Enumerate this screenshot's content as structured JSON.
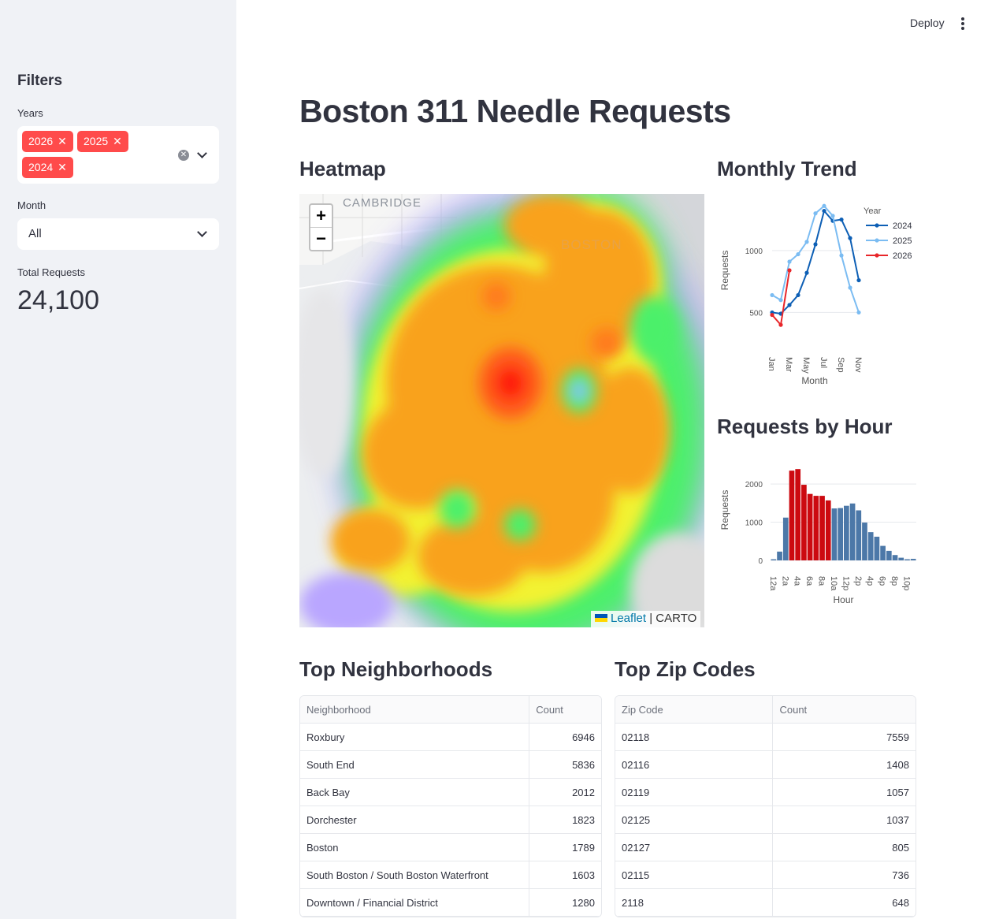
{
  "header": {
    "deploy_label": "Deploy",
    "menu_icon": "kebab-icon"
  },
  "sidebar": {
    "heading": "Filters",
    "years": {
      "label": "Years",
      "selected": [
        "2026",
        "2025",
        "2024"
      ]
    },
    "month": {
      "label": "Month",
      "value": "All"
    },
    "metric": {
      "label": "Total Requests",
      "value": "24,100"
    }
  },
  "page": {
    "title": "Boston 311 Needle Requests"
  },
  "heatmap": {
    "title": "Heatmap",
    "place_labels": [
      "CAMBRIDGE",
      "BOSTON"
    ],
    "zoom_in": "+",
    "zoom_out": "−",
    "attribution": {
      "leaflet": "Leaflet",
      "separator": "|",
      "tiles": "CARTO"
    }
  },
  "monthly_trend": {
    "title": "Monthly Trend",
    "chart_data": {
      "type": "line",
      "xlabel": "Month",
      "ylabel": "Requests",
      "x_ticks": [
        "Jan",
        "Mar",
        "May",
        "Jul",
        "Sep",
        "Nov"
      ],
      "y_ticks": [
        500,
        1000
      ],
      "ylim": [
        350,
        1400
      ],
      "legend_title": "Year",
      "legend_position": "top-right",
      "series": [
        {
          "name": "2024",
          "color": "#0d5fb5",
          "values": [
            500,
            490,
            560,
            640,
            820,
            1050,
            1320,
            1240,
            1250,
            1100,
            760
          ]
        },
        {
          "name": "2025",
          "color": "#7bbcf2",
          "values": [
            640,
            600,
            910,
            970,
            1070,
            1300,
            1360,
            1280,
            960,
            700,
            500
          ]
        },
        {
          "name": "2026",
          "color": "#e8262a",
          "values": [
            480,
            400,
            840
          ]
        }
      ]
    }
  },
  "requests_by_hour": {
    "title": "Requests by Hour",
    "chart_data": {
      "type": "bar",
      "xlabel": "Hour",
      "ylabel": "Requests",
      "categories": [
        "12a",
        "1a",
        "2a",
        "3a",
        "4a",
        "5a",
        "6a",
        "7a",
        "8a",
        "9a",
        "10a",
        "11a",
        "12p",
        "1p",
        "2p",
        "3p",
        "4p",
        "5p",
        "6p",
        "7p",
        "8p",
        "9p",
        "10p",
        "11p"
      ],
      "x_tick_labels": [
        "12a",
        "2a",
        "4a",
        "6a",
        "8a",
        "10a",
        "12p",
        "2p",
        "4p",
        "6p",
        "8p",
        "10p"
      ],
      "values": [
        30,
        230,
        1120,
        2350,
        2390,
        1980,
        1740,
        1690,
        1690,
        1570,
        1360,
        1370,
        1430,
        1490,
        1310,
        990,
        740,
        620,
        380,
        250,
        140,
        70,
        30,
        40
      ],
      "highlighted": [
        3,
        4,
        5,
        6,
        7,
        8,
        9
      ],
      "y_ticks": [
        0,
        1000,
        2000
      ],
      "ylim": [
        0,
        2600
      ],
      "colors": {
        "normal": "#4c78a8",
        "highlight": "#cc0a10"
      }
    }
  },
  "top_neighborhoods": {
    "title": "Top Neighborhoods",
    "columns": [
      "Neighborhood",
      "Count"
    ],
    "rows": [
      [
        "Roxbury",
        "6946"
      ],
      [
        "South End",
        "5836"
      ],
      [
        "Back Bay",
        "2012"
      ],
      [
        "Dorchester",
        "1823"
      ],
      [
        "Boston",
        "1789"
      ],
      [
        "South Boston / South Boston Waterfront",
        "1603"
      ],
      [
        "Downtown / Financial District",
        "1280"
      ]
    ]
  },
  "top_zip_codes": {
    "title": "Top Zip Codes",
    "columns": [
      "Zip Code",
      "Count"
    ],
    "rows": [
      [
        "02118",
        "7559"
      ],
      [
        "02116",
        "1408"
      ],
      [
        "02119",
        "1057"
      ],
      [
        "02125",
        "1037"
      ],
      [
        "02127",
        "805"
      ],
      [
        "02115",
        "736"
      ],
      [
        "2118",
        "648"
      ]
    ]
  }
}
